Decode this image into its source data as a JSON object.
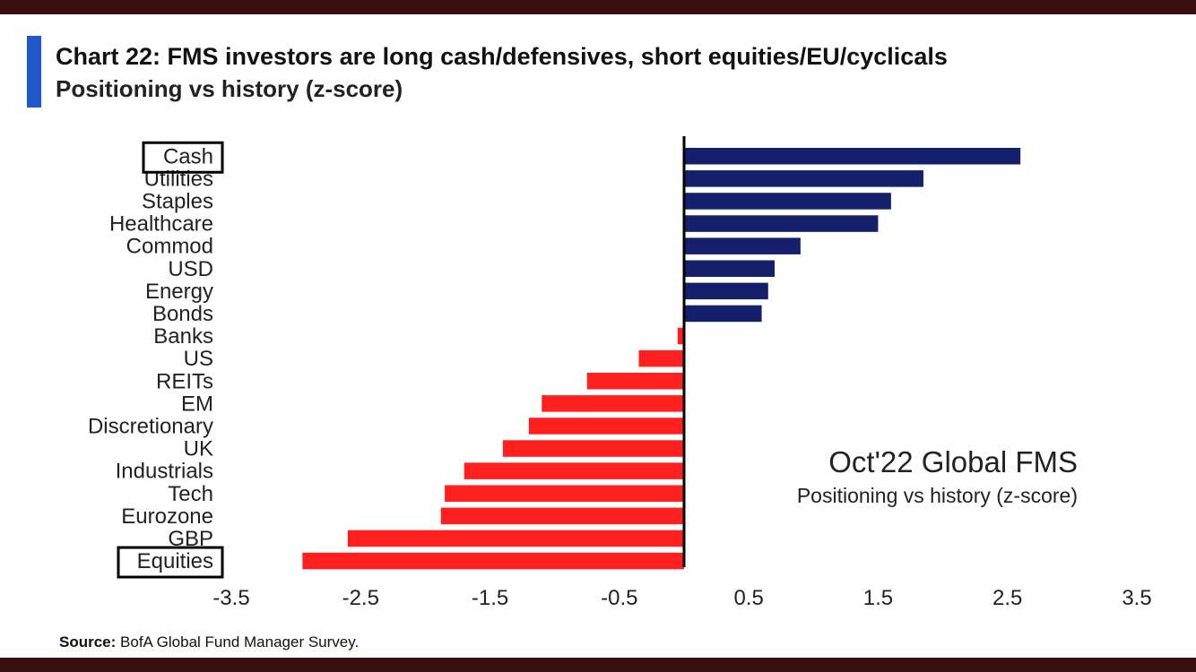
{
  "header": {
    "title": "Chart 22: FMS investors are long cash/defensives, short equities/EU/cyclicals",
    "subtitle": "Positioning vs history (z-score)"
  },
  "footer": {
    "source_label": "Source:",
    "source_text": "BofA Global Fund Manager Survey."
  },
  "chart_data": {
    "type": "bar",
    "orientation": "horizontal",
    "categories": [
      "Cash",
      "Utilities",
      "Staples",
      "Healthcare",
      "Commod",
      "USD",
      "Energy",
      "Bonds",
      "Banks",
      "US",
      "REITs",
      "EM",
      "Discretionary",
      "UK",
      "Industrials",
      "Tech",
      "Eurozone",
      "GBP",
      "Equities"
    ],
    "values": [
      2.6,
      1.85,
      1.6,
      1.5,
      0.9,
      0.7,
      0.65,
      0.6,
      -0.05,
      -0.35,
      -0.75,
      -1.1,
      -1.2,
      -1.4,
      -1.7,
      -1.85,
      -1.88,
      -2.6,
      -2.95
    ],
    "xlim": [
      -3.5,
      3.5
    ],
    "xticks": [
      "-3.5",
      "-2.5",
      "-1.5",
      "-0.5",
      "0.5",
      "1.5",
      "2.5",
      "3.5"
    ],
    "xtick_values": [
      -3.5,
      -2.5,
      -1.5,
      -0.5,
      0.5,
      1.5,
      2.5,
      3.5
    ],
    "highlighted_categories": [
      "Cash",
      "Equities"
    ],
    "positive_color": "#14206b",
    "negative_color": "#ff1f1f",
    "grid": false,
    "annotation": {
      "title": "Oct'22 Global FMS",
      "subtitle": "Positioning vs history (z-score)"
    }
  }
}
